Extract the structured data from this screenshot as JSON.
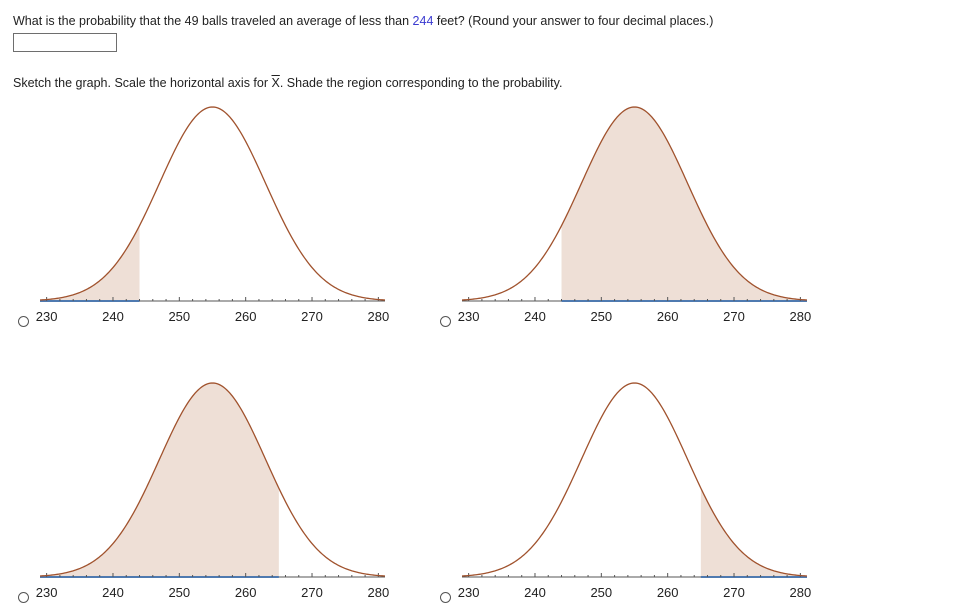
{
  "question": {
    "prefix": "What is the probability that the 49 balls traveled an average of less than ",
    "highlight": "244",
    "suffix": " feet? (Round your answer to four decimal places.)"
  },
  "answer": {
    "value": ""
  },
  "instruction": {
    "prefix": "Sketch the graph. Scale the horizontal axis for ",
    "variable": "X",
    "suffix": ". Shade the region corresponding to the probability."
  },
  "colors": {
    "curve": "#a0522d",
    "shade": "#eedfd6",
    "axis": "#555555",
    "axis_highlight": "#4f7ab0"
  },
  "chart_data": [
    {
      "type": "area",
      "xlim": [
        229,
        281
      ],
      "ticks": [
        230,
        240,
        250,
        260,
        270,
        280
      ],
      "mean": 255,
      "sd": 8,
      "shade_from": 229,
      "shade_to": 244,
      "selected": false
    },
    {
      "type": "area",
      "xlim": [
        229,
        281
      ],
      "ticks": [
        230,
        240,
        250,
        260,
        270,
        280
      ],
      "mean": 255,
      "sd": 8,
      "shade_from": 244,
      "shade_to": 281,
      "selected": false
    },
    {
      "type": "area",
      "xlim": [
        229,
        281
      ],
      "ticks": [
        230,
        240,
        250,
        260,
        270,
        280
      ],
      "mean": 255,
      "sd": 8,
      "shade_from": 229,
      "shade_to": 265,
      "selected": false
    },
    {
      "type": "area",
      "xlim": [
        229,
        281
      ],
      "ticks": [
        230,
        240,
        250,
        260,
        270,
        280
      ],
      "mean": 255,
      "sd": 8,
      "shade_from": 265,
      "shade_to": 281,
      "selected": false
    }
  ]
}
